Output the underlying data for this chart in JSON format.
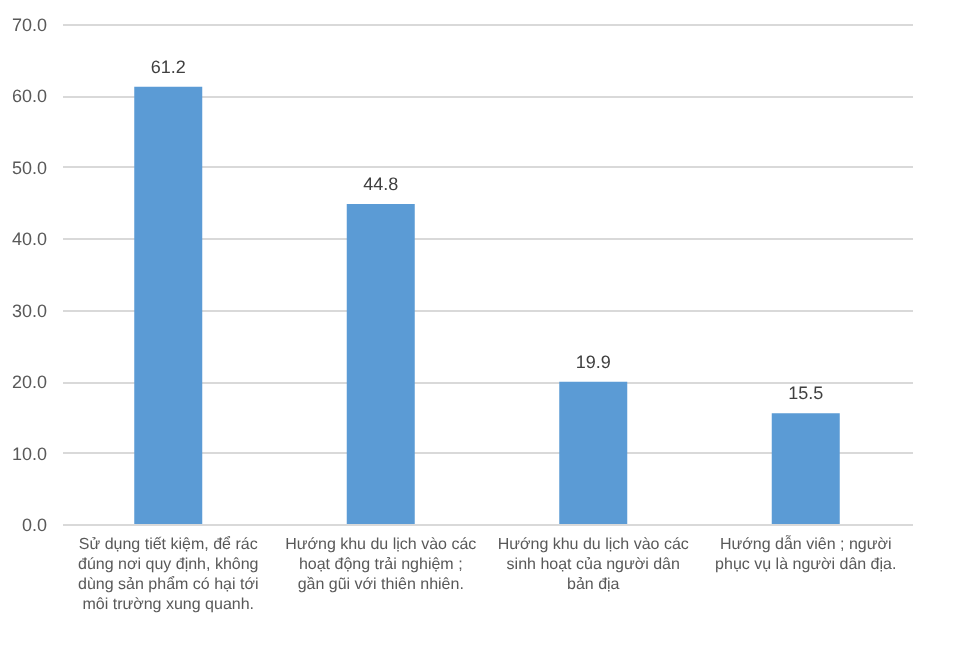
{
  "chart_data": {
    "type": "bar",
    "categories": [
      "Sử dụng tiết kiệm, để rác đúng nơi quy định, không dùng sản phẩm có hại tới môi trường xung quanh.",
      "Hướng khu du lịch vào các hoạt động trải nghiệm ; gần gũi với thiên nhiên.",
      "Hướng khu du lịch vào các sinh hoạt của người dân bản địa",
      "Hướng dẫn viên ; người phục vụ là người dân địa."
    ],
    "values": [
      61.2,
      44.8,
      19.9,
      15.5
    ],
    "color": "#5b9bd5",
    "ylim": [
      0,
      70
    ],
    "yticks": [
      {
        "value": 0,
        "label": "0.0"
      },
      {
        "value": 10,
        "label": "10.0"
      },
      {
        "value": 20,
        "label": "20.0"
      },
      {
        "value": 30,
        "label": "30.0"
      },
      {
        "value": 40,
        "label": "40.0"
      },
      {
        "value": 50,
        "label": "50.0"
      },
      {
        "value": 60,
        "label": "60.0"
      },
      {
        "value": 70,
        "label": "70.0"
      }
    ],
    "grid": "y",
    "data_labels": true
  }
}
